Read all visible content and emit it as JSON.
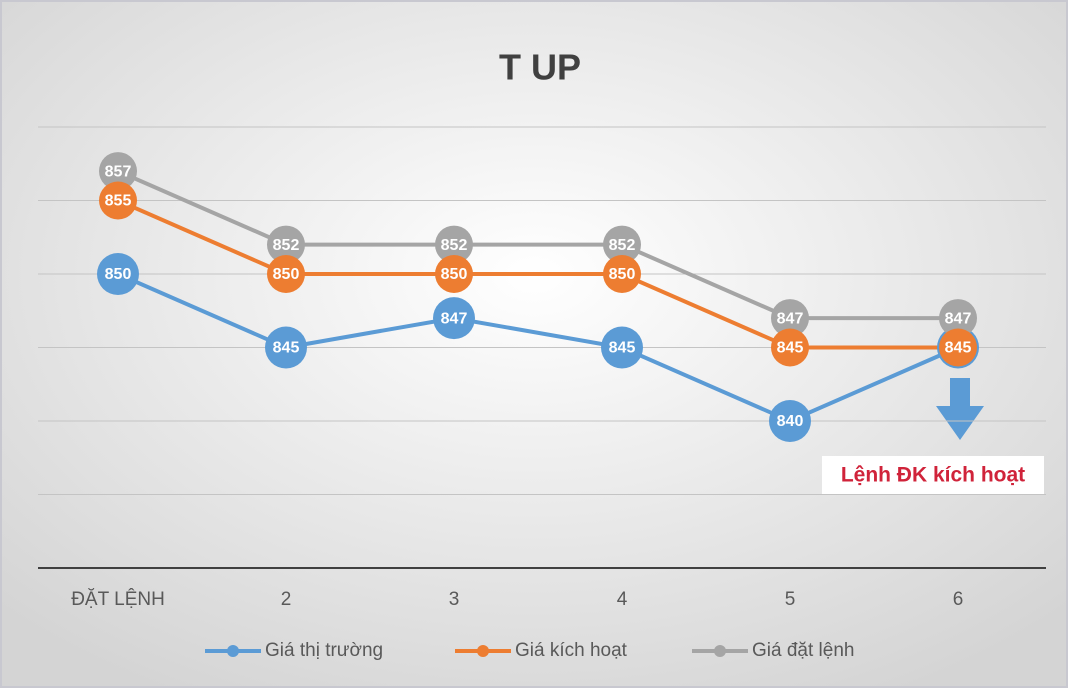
{
  "chart_data": {
    "type": "line",
    "title": "T UP",
    "categories": [
      "ĐẶT LỆNH",
      "2",
      "3",
      "4",
      "5",
      "6"
    ],
    "series": [
      {
        "name": "Giá thị trường",
        "color": "#5b9bd5",
        "values": [
          850,
          845,
          847,
          845,
          840,
          845
        ]
      },
      {
        "name": "Giá kích hoạt",
        "color": "#ed7d31",
        "values": [
          855,
          850,
          850,
          850,
          845,
          845
        ]
      },
      {
        "name": "Giá đặt lệnh",
        "color": "#a5a5a5",
        "values": [
          857,
          852,
          852,
          852,
          847,
          847
        ]
      }
    ],
    "ylim": [
      830,
      860
    ],
    "yticks": [
      835,
      840,
      845,
      850,
      855,
      860
    ],
    "grid": true,
    "legend": "bottom",
    "annotation": "Lệnh ĐK kích hoạt"
  }
}
